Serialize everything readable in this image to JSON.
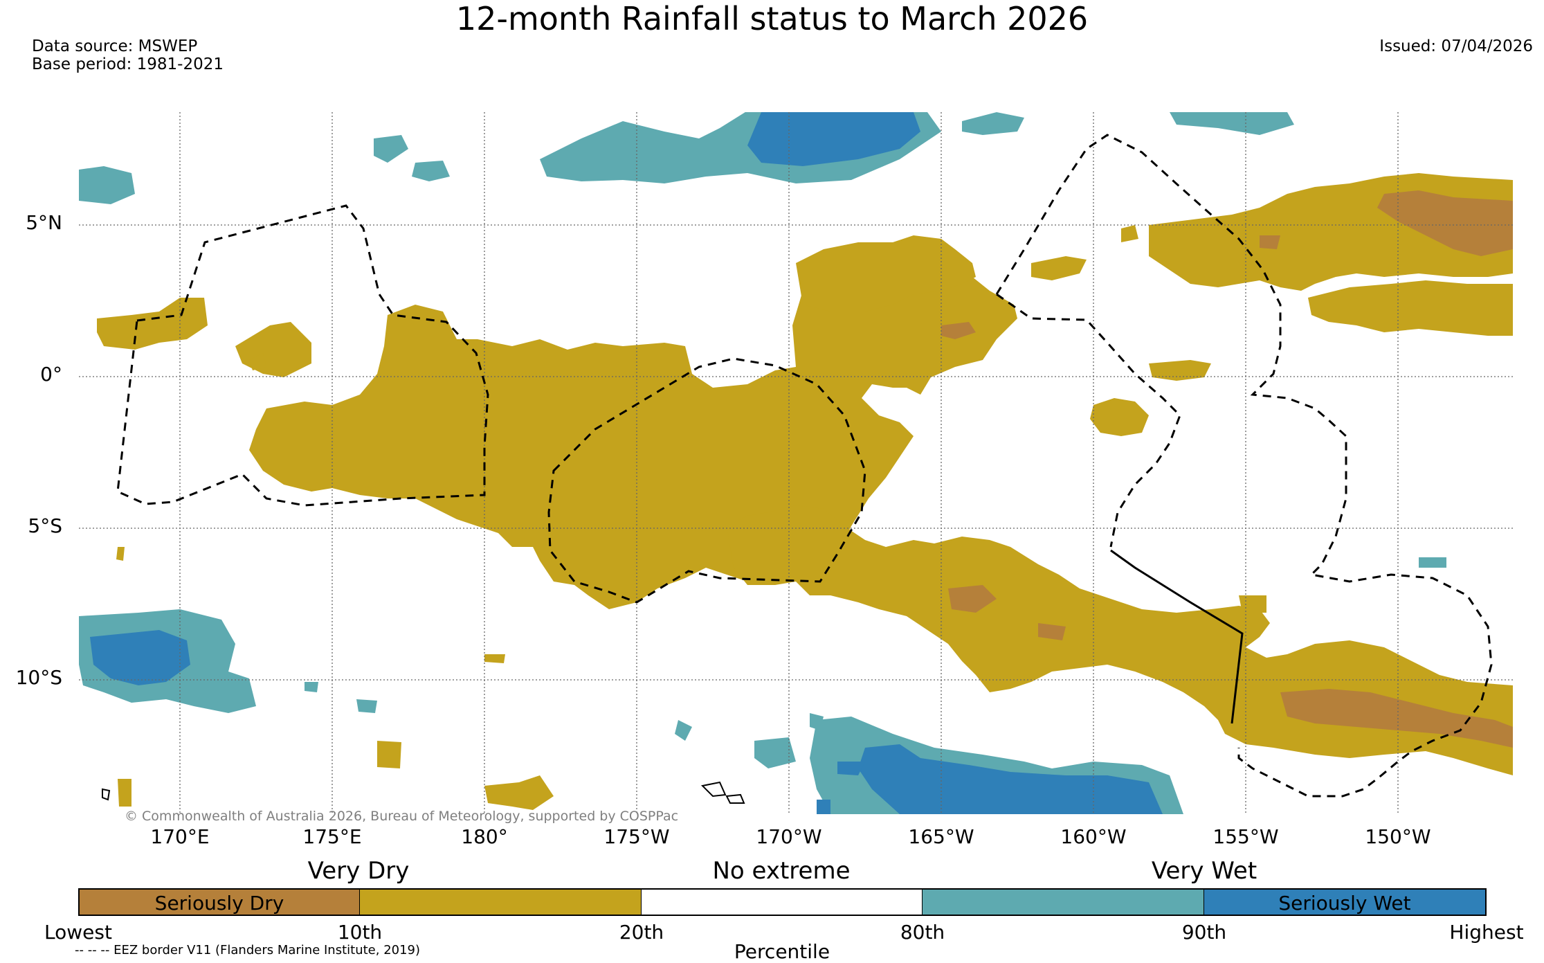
{
  "title": "12-month Rainfall status to March 2026",
  "data_source": "Data source: MSWEP",
  "base_period": "Base period: 1981-2021",
  "issued": "Issued: 07/04/2026",
  "copyright": "© Commonwealth of Australia 2026, Bureau of Meteorology, supported by COSPPac",
  "map": {
    "lon_labels": [
      "170°E",
      "175°E",
      "180°",
      "175°W",
      "170°W",
      "165°W",
      "160°W",
      "155°W",
      "150°W"
    ],
    "lat_labels": [
      "5°N",
      "0°",
      "5°S",
      "10°S"
    ]
  },
  "legend": {
    "categories": [
      "Very Dry",
      "No extreme",
      "Very Wet"
    ],
    "bins": [
      {
        "label": "Seriously Dry",
        "color": "#b5803a"
      },
      {
        "label": "",
        "color": "#c4a31d"
      },
      {
        "label": "",
        "color": "#ffffff"
      },
      {
        "label": "",
        "color": "#5eaab0"
      },
      {
        "label": "Seriously Wet",
        "color": "#2f80b8"
      }
    ],
    "percentiles": [
      "Lowest",
      "10th",
      "20th",
      "80th",
      "90th",
      "Highest"
    ],
    "axis_title": "Percentile",
    "eez_note": "-- -- -- EEZ border V11 (Flanders Marine Institute, 2019)"
  }
}
